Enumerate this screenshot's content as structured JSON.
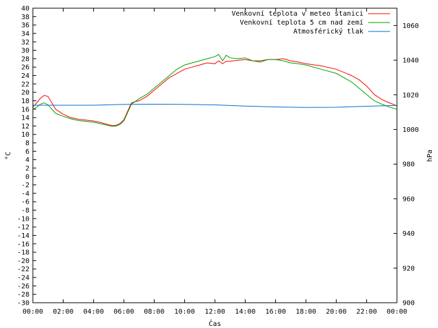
{
  "chart_data": {
    "type": "line",
    "xlabel": "Čas",
    "ylabel_left": "°C",
    "ylabel_right": "hPa",
    "xlim": [
      0,
      24
    ],
    "ylim_left": [
      -30,
      40
    ],
    "ylim_right": [
      900,
      1070
    ],
    "x_ticks": [
      "00:00",
      "02:00",
      "04:00",
      "06:00",
      "08:00",
      "10:00",
      "12:00",
      "14:00",
      "16:00",
      "18:00",
      "20:00",
      "22:00",
      "00:00"
    ],
    "y_left_ticks": [
      40,
      38,
      36,
      34,
      32,
      30,
      28,
      26,
      24,
      22,
      20,
      18,
      16,
      14,
      12,
      10,
      8,
      6,
      4,
      2,
      0,
      -2,
      -4,
      -6,
      -8,
      -10,
      -12,
      -14,
      -16,
      -18,
      -20,
      -22,
      -24,
      -26,
      -28,
      -30
    ],
    "y_right_ticks": [
      1060,
      1040,
      1020,
      1000,
      980,
      960,
      940,
      920,
      900
    ],
    "grid": false,
    "legend_position": "top-right",
    "series": [
      {
        "name": "Venkovní teplota v meteo stanici",
        "color": "#ff0000",
        "axis": "left",
        "x": [
          0,
          0.25,
          0.5,
          0.75,
          1.0,
          1.25,
          1.5,
          2.0,
          2.5,
          3.0,
          3.5,
          4.0,
          4.5,
          5.0,
          5.25,
          5.5,
          5.75,
          6.0,
          6.25,
          6.5,
          6.75,
          7.0,
          7.5,
          8.0,
          8.5,
          9.0,
          9.5,
          10.0,
          10.5,
          11.0,
          11.5,
          12.0,
          12.25,
          12.5,
          12.75,
          13.0,
          13.5,
          14.0,
          14.5,
          15.0,
          15.5,
          16.0,
          16.5,
          17.0,
          17.5,
          18.0,
          19.0,
          20.0,
          21.0,
          21.5,
          22.0,
          22.5,
          23.0,
          23.5,
          24.0
        ],
        "values": [
          16.5,
          17.5,
          18.6,
          19.3,
          19.0,
          17.5,
          16.0,
          14.8,
          14.0,
          13.6,
          13.4,
          13.2,
          12.8,
          12.3,
          12.1,
          12.2,
          12.6,
          13.5,
          15.5,
          17.5,
          17.8,
          18.0,
          19.0,
          20.5,
          22.0,
          23.5,
          24.5,
          25.5,
          26.0,
          26.5,
          27.0,
          26.8,
          27.5,
          26.8,
          27.4,
          27.4,
          27.6,
          27.8,
          27.5,
          27.5,
          27.8,
          27.8,
          28.0,
          27.5,
          27.2,
          26.8,
          26.3,
          25.5,
          24.0,
          23.0,
          21.5,
          19.5,
          18.3,
          17.5,
          16.8
        ]
      },
      {
        "name": "Venkovní teplota 5 cm nad zemí",
        "color": "#00a000",
        "axis": "left",
        "x": [
          0,
          0.25,
          0.5,
          0.75,
          1.0,
          1.25,
          1.5,
          2.0,
          2.5,
          3.0,
          3.5,
          4.0,
          4.5,
          5.0,
          5.25,
          5.5,
          5.75,
          6.0,
          6.25,
          6.5,
          6.75,
          7.0,
          7.5,
          8.0,
          8.5,
          9.0,
          9.5,
          10.0,
          10.5,
          11.0,
          11.5,
          12.0,
          12.25,
          12.5,
          12.75,
          13.0,
          13.5,
          14.0,
          14.5,
          15.0,
          15.5,
          16.0,
          16.5,
          17.0,
          17.5,
          18.0,
          19.0,
          20.0,
          21.0,
          21.5,
          22.0,
          22.5,
          23.0,
          23.5,
          24.0
        ],
        "values": [
          16.0,
          16.5,
          17.2,
          17.5,
          17.0,
          16.0,
          15.0,
          14.3,
          13.7,
          13.3,
          13.1,
          12.9,
          12.5,
          12.1,
          11.9,
          12.0,
          12.4,
          13.2,
          15.2,
          17.2,
          17.8,
          18.5,
          19.5,
          21.0,
          22.5,
          24.0,
          25.5,
          26.5,
          27.0,
          27.5,
          28.0,
          28.5,
          29.0,
          27.5,
          28.8,
          28.2,
          28.0,
          28.2,
          27.5,
          27.2,
          27.8,
          27.8,
          27.5,
          27.0,
          26.8,
          26.5,
          25.5,
          24.5,
          22.5,
          21.0,
          19.5,
          18.0,
          17.2,
          16.5,
          16.0
        ]
      },
      {
        "name": "Atmosférický tlak",
        "color": "#0070d0",
        "axis": "right",
        "x": [
          0,
          2,
          4,
          6,
          7,
          8,
          10,
          12,
          14,
          16,
          18,
          20,
          22,
          24
        ],
        "values": [
          1014.0,
          1014.0,
          1014.0,
          1014.5,
          1014.6,
          1014.6,
          1014.5,
          1014.2,
          1013.5,
          1013.0,
          1012.7,
          1012.8,
          1013.4,
          1013.9
        ]
      }
    ]
  }
}
